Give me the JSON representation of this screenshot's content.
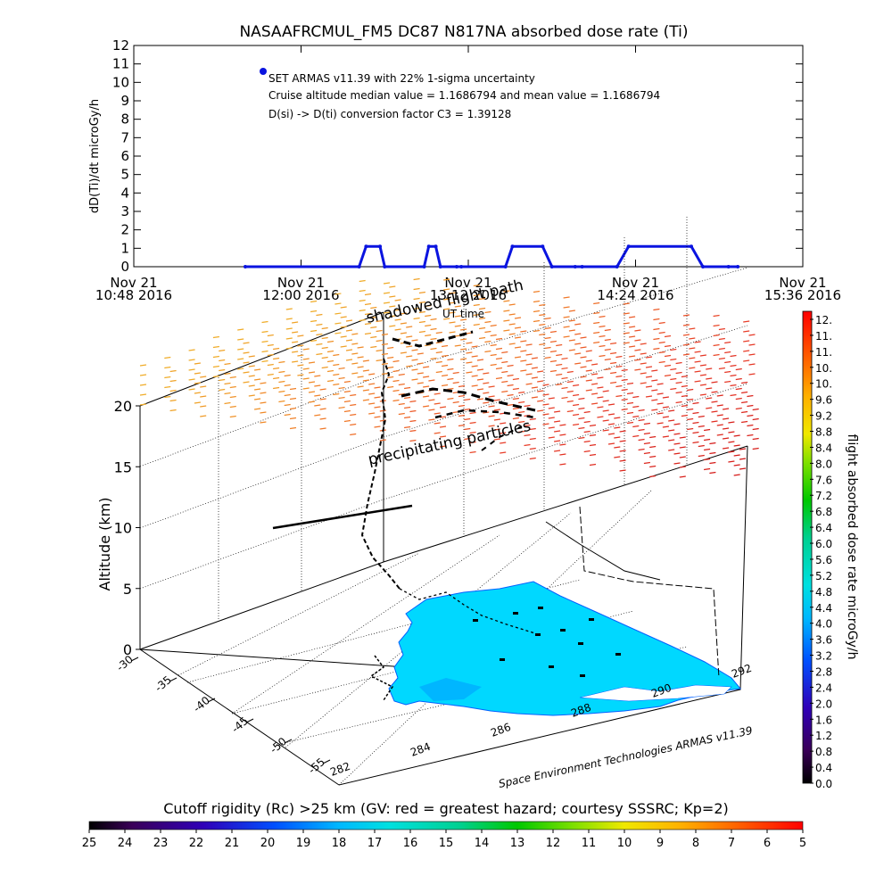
{
  "chart_data": [
    {
      "type": "line",
      "title": "NASAAFRCMUL_FM5 DC87 N817NA absorbed dose rate (Ti)",
      "ylabel": "dD(Ti)/dt microGy/h",
      "xlabel": "UT time",
      "ylim": [
        0,
        12
      ],
      "y_ticks": [
        "0",
        "1",
        "2",
        "3",
        "4",
        "5",
        "6",
        "7",
        "8",
        "9",
        "10",
        "11",
        "12"
      ],
      "x_ticks": [
        {
          "line1": "Nov 21",
          "line2": "10:48 2016"
        },
        {
          "line1": "Nov 21",
          "line2": "12:00 2016"
        },
        {
          "line1": "Nov 21",
          "line2": "13:12 2016"
        },
        {
          "line1": "Nov 21",
          "line2": "14:24 2016"
        },
        {
          "line1": "Nov 21",
          "line2": "15:36 2016"
        }
      ],
      "annotations": [
        "SET ARMAS v11.39 with 22% 1-sigma uncertainty",
        "Cruise altitude median value = 1.1686794 and mean value = 1.1686794",
        "D(si) -> D(ti) conversion factor C3 = 1.39128"
      ],
      "series_color": "#0a14e0",
      "series": [
        {
          "x_minutes": [
            48,
            97,
            100,
            106,
            108,
            125,
            127,
            130,
            132,
            139,
            141,
            160,
            163,
            176,
            180,
            190,
            193,
            208,
            213,
            240,
            245,
            256,
            260
          ],
          "values": [
            0,
            0,
            1.1,
            1.1,
            0,
            0,
            1.1,
            1.1,
            0,
            0,
            0,
            0,
            1.1,
            1.1,
            0,
            0,
            0,
            0,
            1.1,
            1.1,
            0,
            0,
            0
          ]
        }
      ]
    },
    {
      "type": "scatter",
      "title": "",
      "ylabel": "Altitude (km)",
      "z_ticks": [
        "0",
        "5",
        "10",
        "15",
        "20"
      ],
      "lat_ticks": [
        "-30",
        "-35",
        "-40",
        "-45",
        "-50",
        "-55"
      ],
      "lon_ticks": [
        "282",
        "284",
        "286",
        "288",
        "290",
        "292"
      ],
      "annotations": [
        "shadowed flight path",
        "precipitating particles",
        "UT time"
      ],
      "credit": "Space Environment Technologies ARMAS v11.39",
      "colorbar": {
        "label": "flight absorbed dose rate microGy/h",
        "ticks": [
          "12.",
          "11.",
          "11.",
          "10.",
          "10.",
          "9.6",
          "9.2",
          "8.8",
          "8.4",
          "8.0",
          "7.6",
          "7.2",
          "6.8",
          "6.4",
          "6.0",
          "5.6",
          "5.2",
          "4.8",
          "4.4",
          "4.0",
          "3.6",
          "3.2",
          "2.8",
          "2.4",
          "2.0",
          "1.6",
          "1.2",
          "0.8",
          "0.4",
          "0.0"
        ],
        "range": [
          0,
          12
        ]
      },
      "land_color": "#00d8ff"
    },
    {
      "type": "heatmap",
      "title": "Cutoff rigidity (Rc) >25 km (GV: red = greatest hazard; courtesy SSSRC; Kp=2)",
      "ticks": [
        "25",
        "24",
        "23",
        "22",
        "21",
        "20",
        "19",
        "18",
        "17",
        "16",
        "15",
        "14",
        "13",
        "12",
        "11",
        "10",
        "9",
        "8",
        "7",
        "6",
        "5"
      ],
      "range": [
        25,
        5
      ]
    }
  ]
}
